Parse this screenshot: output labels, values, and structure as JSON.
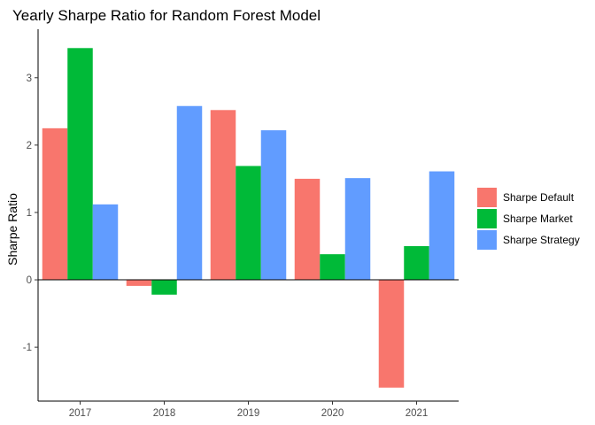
{
  "chart_data": {
    "type": "bar",
    "title": "Yearly Sharpe Ratio for Random Forest Model",
    "xlabel": "",
    "ylabel": "Sharpe Ratio",
    "categories": [
      "2017",
      "2018",
      "2019",
      "2020",
      "2021"
    ],
    "series": [
      {
        "name": "Sharpe Default",
        "color": "#F8766D",
        "values": [
          2.25,
          -0.09,
          2.52,
          1.5,
          -1.6
        ]
      },
      {
        "name": "Sharpe Market",
        "color": "#00BA38",
        "values": [
          3.44,
          -0.22,
          1.69,
          0.38,
          0.5
        ]
      },
      {
        "name": "Sharpe Strategy",
        "color": "#619CFF",
        "values": [
          1.12,
          2.58,
          2.22,
          1.51,
          1.61
        ]
      }
    ],
    "yticks": [
      -1,
      0,
      1,
      2,
      3
    ],
    "ylim": [
      -1.8,
      3.72
    ],
    "grid": false,
    "zero_line": true,
    "legend_position": "right"
  }
}
